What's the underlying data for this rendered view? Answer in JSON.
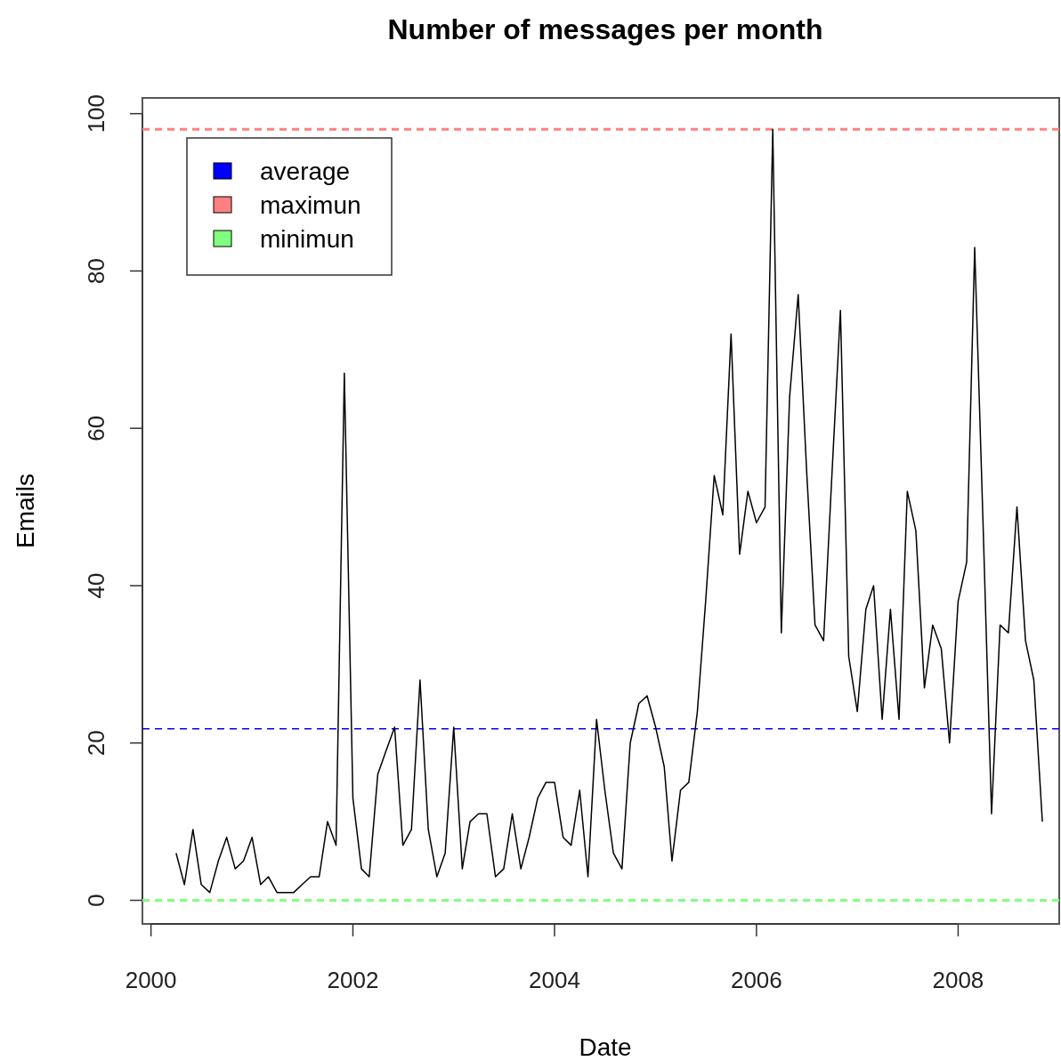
{
  "chart_data": {
    "type": "line",
    "title": "Number of messages per month",
    "xlabel": "Date",
    "ylabel": "Emails",
    "x": [
      "2000-04",
      "2000-05",
      "2000-06",
      "2000-07",
      "2000-08",
      "2000-09",
      "2000-10",
      "2000-11",
      "2000-12",
      "2001-01",
      "2001-02",
      "2001-03",
      "2001-04",
      "2001-05",
      "2001-06",
      "2001-07",
      "2001-08",
      "2001-09",
      "2001-10",
      "2001-11",
      "2001-12",
      "2002-01",
      "2002-02",
      "2002-03",
      "2002-04",
      "2002-05",
      "2002-06",
      "2002-07",
      "2002-08",
      "2002-09",
      "2002-10",
      "2002-11",
      "2002-12",
      "2003-01",
      "2003-02",
      "2003-03",
      "2003-04",
      "2003-05",
      "2003-06",
      "2003-07",
      "2003-08",
      "2003-09",
      "2003-10",
      "2003-11",
      "2003-12",
      "2004-01",
      "2004-02",
      "2004-03",
      "2004-04",
      "2004-05",
      "2004-06",
      "2004-07",
      "2004-08",
      "2004-09",
      "2004-10",
      "2004-11",
      "2004-12",
      "2005-01",
      "2005-02",
      "2005-03",
      "2005-04",
      "2005-05",
      "2005-06",
      "2005-07",
      "2005-08",
      "2005-09",
      "2005-10",
      "2005-11",
      "2005-12",
      "2006-01",
      "2006-02",
      "2006-03",
      "2006-04",
      "2006-05",
      "2006-06",
      "2006-07",
      "2006-08",
      "2006-09",
      "2006-10",
      "2006-11",
      "2006-12",
      "2007-01",
      "2007-02",
      "2007-03",
      "2007-04",
      "2007-05",
      "2007-06",
      "2007-07",
      "2007-08",
      "2007-09",
      "2007-10",
      "2007-11",
      "2007-12",
      "2008-01",
      "2008-02",
      "2008-03",
      "2008-04",
      "2008-05",
      "2008-06",
      "2008-07",
      "2008-08",
      "2008-09",
      "2008-10",
      "2008-11"
    ],
    "series": [
      {
        "color": "#000000",
        "values": [
          6,
          2,
          9,
          2,
          1,
          5,
          8,
          4,
          5,
          8,
          2,
          3,
          1,
          1,
          1,
          2,
          3,
          3,
          10,
          7,
          67,
          13,
          4,
          3,
          16,
          19,
          22,
          7,
          9,
          28,
          9,
          3,
          6,
          22,
          4,
          10,
          11,
          11,
          3,
          4,
          11,
          4,
          8,
          13,
          15,
          15,
          8,
          7,
          14,
          3,
          23,
          14,
          6,
          4,
          20,
          25,
          26,
          22,
          17,
          5,
          14,
          15,
          24,
          38,
          54,
          49,
          72,
          44,
          52,
          48,
          50,
          98,
          34,
          64,
          77,
          55,
          35,
          33,
          54,
          75,
          31,
          24,
          37,
          40,
          23,
          37,
          23,
          52,
          47,
          27,
          35,
          32,
          20,
          38,
          43,
          83,
          47,
          11,
          35,
          34,
          50,
          33,
          28,
          10
        ]
      }
    ],
    "xlim": [
      "1999-12",
      "2009-01"
    ],
    "xticks": [
      "2000",
      "2002",
      "2004",
      "2006",
      "2008"
    ],
    "ylim": [
      -3,
      102
    ],
    "yticks": [
      0,
      20,
      40,
      60,
      80,
      100
    ],
    "ref_lines": [
      {
        "axis": "y",
        "value": 21.8,
        "label": "average",
        "color": "#0000ff",
        "line_style": "dashed"
      },
      {
        "axis": "y",
        "value": 98,
        "label": "maximun",
        "color": "#ff8080",
        "line_style": "dashed"
      },
      {
        "axis": "y",
        "value": 0,
        "label": "minimun",
        "color": "#80ff80",
        "line_style": "dashed"
      }
    ],
    "legend": "top left",
    "grid": false,
    "line_style": "solid",
    "marker": "none"
  }
}
